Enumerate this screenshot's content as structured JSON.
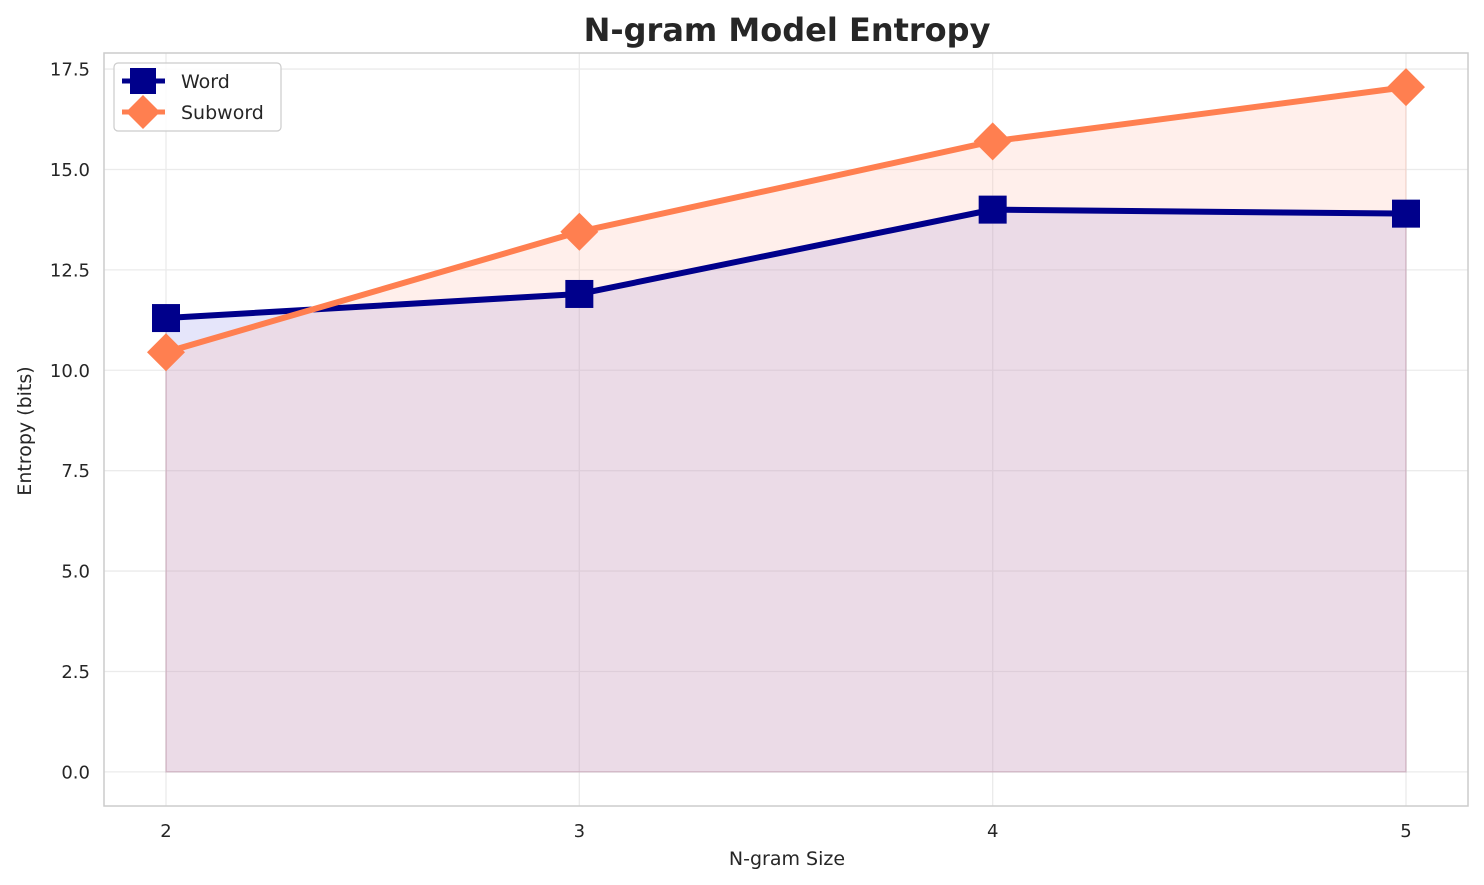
{
  "chart_data": {
    "type": "line",
    "title": "N-gram Model Entropy",
    "xlabel": "N-gram Size",
    "ylabel": "Entropy (bits)",
    "x": [
      2,
      3,
      4,
      5
    ],
    "x_tick_labels": [
      "2",
      "3",
      "4",
      "5"
    ],
    "y_ticks": [
      0.0,
      2.5,
      5.0,
      7.5,
      10.0,
      12.5,
      15.0,
      17.5
    ],
    "y_tick_labels": [
      "0.0",
      "2.5",
      "5.0",
      "7.5",
      "10.0",
      "12.5",
      "15.0",
      "17.5"
    ],
    "xlim": [
      1.85,
      5.15
    ],
    "ylim": [
      -0.85,
      17.9
    ],
    "grid": true,
    "legend_position": "top-left",
    "series": [
      {
        "name": "Word",
        "values": [
          11.3,
          11.9,
          14.0,
          13.9
        ],
        "color": "#00008b",
        "fill_color": "#0000cd",
        "marker": "square"
      },
      {
        "name": "Subword",
        "values": [
          10.45,
          13.45,
          15.7,
          17.05
        ],
        "color": "#ff7f50",
        "fill_color": "#ffc0b0",
        "marker": "diamond"
      }
    ]
  }
}
